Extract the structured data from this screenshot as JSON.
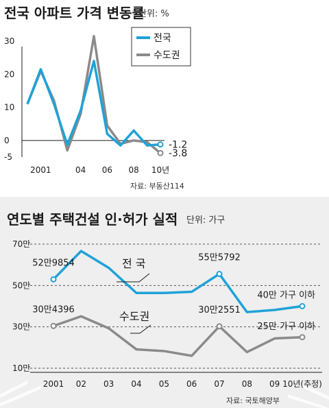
{
  "colors": {
    "national": "#1fa2d8",
    "capital": "#8a8a8a",
    "panel_bg": "#efefef",
    "text": "#1a1a1a"
  },
  "chart_data": [
    {
      "type": "line",
      "title": "전국 아파트 가격 변동률",
      "unit": "단위: %",
      "source": "자료: 부동산114",
      "x": [
        2000,
        2001,
        2002,
        2003,
        2004,
        2005,
        2006,
        2007,
        2008,
        2009,
        2010
      ],
      "x_tick_labels": [
        {
          "x": 2001,
          "label": "2001"
        },
        {
          "x": 2004,
          "label": "04"
        },
        {
          "x": 2006,
          "label": "06"
        },
        {
          "x": 2008,
          "label": "08"
        },
        {
          "x": 2010,
          "label": "10년"
        }
      ],
      "y_ticks": [
        {
          "value": 30,
          "label": "30"
        },
        {
          "value": 20,
          "label": "20"
        },
        {
          "value": 10,
          "label": "10"
        },
        {
          "value": 0,
          "label": "0"
        },
        {
          "value": -5,
          "label": "-5"
        }
      ],
      "ylim": [
        -5,
        30
      ],
      "series": [
        {
          "name": "전국",
          "color": "#1fa2d8",
          "values": [
            11,
            21.5,
            11,
            -1.3,
            9,
            24,
            2,
            -1.5,
            3,
            -1.5,
            -1.2
          ],
          "end_label": "-1.2"
        },
        {
          "name": "수도권",
          "color": "#8a8a8a",
          "values": [
            11,
            21,
            12,
            -3,
            8,
            31.5,
            4.5,
            -1,
            0,
            -0.5,
            -3.8
          ],
          "end_label": "-3.8"
        }
      ],
      "zero_line": true,
      "legend_position": "top-right"
    },
    {
      "type": "line",
      "title": "연도별 주택건설 인·허가 실적",
      "unit": "단위: 가구",
      "source": "자료: 국토해양부",
      "categories": [
        "2001",
        "02",
        "03",
        "04",
        "05",
        "06",
        "07",
        "08",
        "09",
        "10년(추정)"
      ],
      "y_ticks": [
        {
          "value": 700000,
          "label": "70만"
        },
        {
          "value": 500000,
          "label": "50만"
        },
        {
          "value": 300000,
          "label": "30만"
        },
        {
          "value": 100000,
          "label": "10만"
        }
      ],
      "ylim": [
        100000,
        700000
      ],
      "series": [
        {
          "name": "전 국",
          "color": "#1fa2d8",
          "values": [
            529854,
            666541,
            585382,
            463800,
            463641,
            469503,
            555792,
            371285,
            381787,
            400000
          ]
        },
        {
          "name": "수도권",
          "color": "#8a8a8a",
          "values": [
            304396,
            351000,
            293000,
            191000,
            183000,
            160000,
            302551,
            178000,
            244000,
            250000
          ]
        }
      ],
      "annotations": [
        {
          "series": 0,
          "index": 0,
          "text": "52만9854"
        },
        {
          "series": 0,
          "index": 6,
          "text": "55만5792"
        },
        {
          "series": 0,
          "index": 9,
          "text": "40만 가구 이하"
        },
        {
          "series": 1,
          "index": 0,
          "text": "30만4396"
        },
        {
          "series": 1,
          "index": 6,
          "text": "30만2551"
        },
        {
          "series": 1,
          "index": 9,
          "text": "25만 가구 이하"
        }
      ],
      "grid": "dashed horizontal"
    }
  ]
}
